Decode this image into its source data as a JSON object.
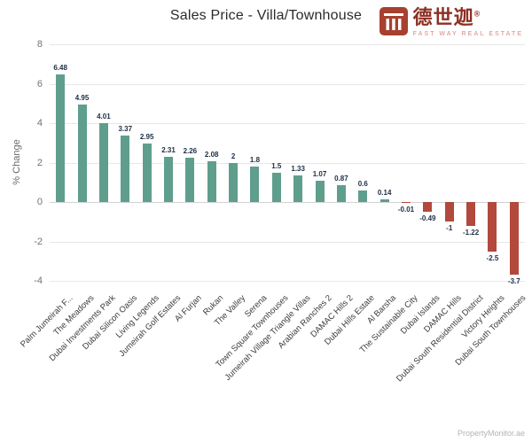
{
  "logo": {
    "name_cn": "德世迦",
    "registered": "®",
    "tagline": "FAST WAY REAL ESTATE"
  },
  "watermark": "PropertyMonitor.ae",
  "chart_data": {
    "type": "bar",
    "title": "Sales Price - Villa/Townhouse",
    "xlabel": "",
    "ylabel": "% Change",
    "ylim": [
      -4,
      8
    ],
    "yticks": [
      8,
      6,
      4,
      2,
      0,
      -2,
      -4
    ],
    "grid": true,
    "legend": false,
    "bar_colors": {
      "positive": "#5f9e8d",
      "negative": "#b2493c"
    },
    "categories": [
      "Palm Jumeirah F...",
      "The Meadows",
      "Dubai Investments Park",
      "Dubai Silicon Oasis",
      "Living Legends",
      "Jumeirah Golf Estates",
      "Al Furjan",
      "Rukan",
      "The Valley",
      "Serena",
      "Town Square Townhouses",
      "Jumeirah Village Triangle Villas",
      "Arabian Ranches 2",
      "DAMAC Hills 2",
      "Dubai Hills Estate",
      "Al Barsha",
      "The Sustainable City",
      "Dubai Islands",
      "DAMAC Hills",
      "Dubai South Residential District",
      "Victory Heights",
      "Dubai South Townhouses"
    ],
    "values": [
      6.48,
      4.95,
      4.01,
      3.37,
      2.95,
      2.31,
      2.26,
      2.08,
      2,
      1.8,
      1.5,
      1.33,
      1.07,
      0.87,
      0.6,
      0.14,
      -0.01,
      -0.49,
      -1,
      -1.22,
      -2.5,
      -3.7
    ]
  }
}
